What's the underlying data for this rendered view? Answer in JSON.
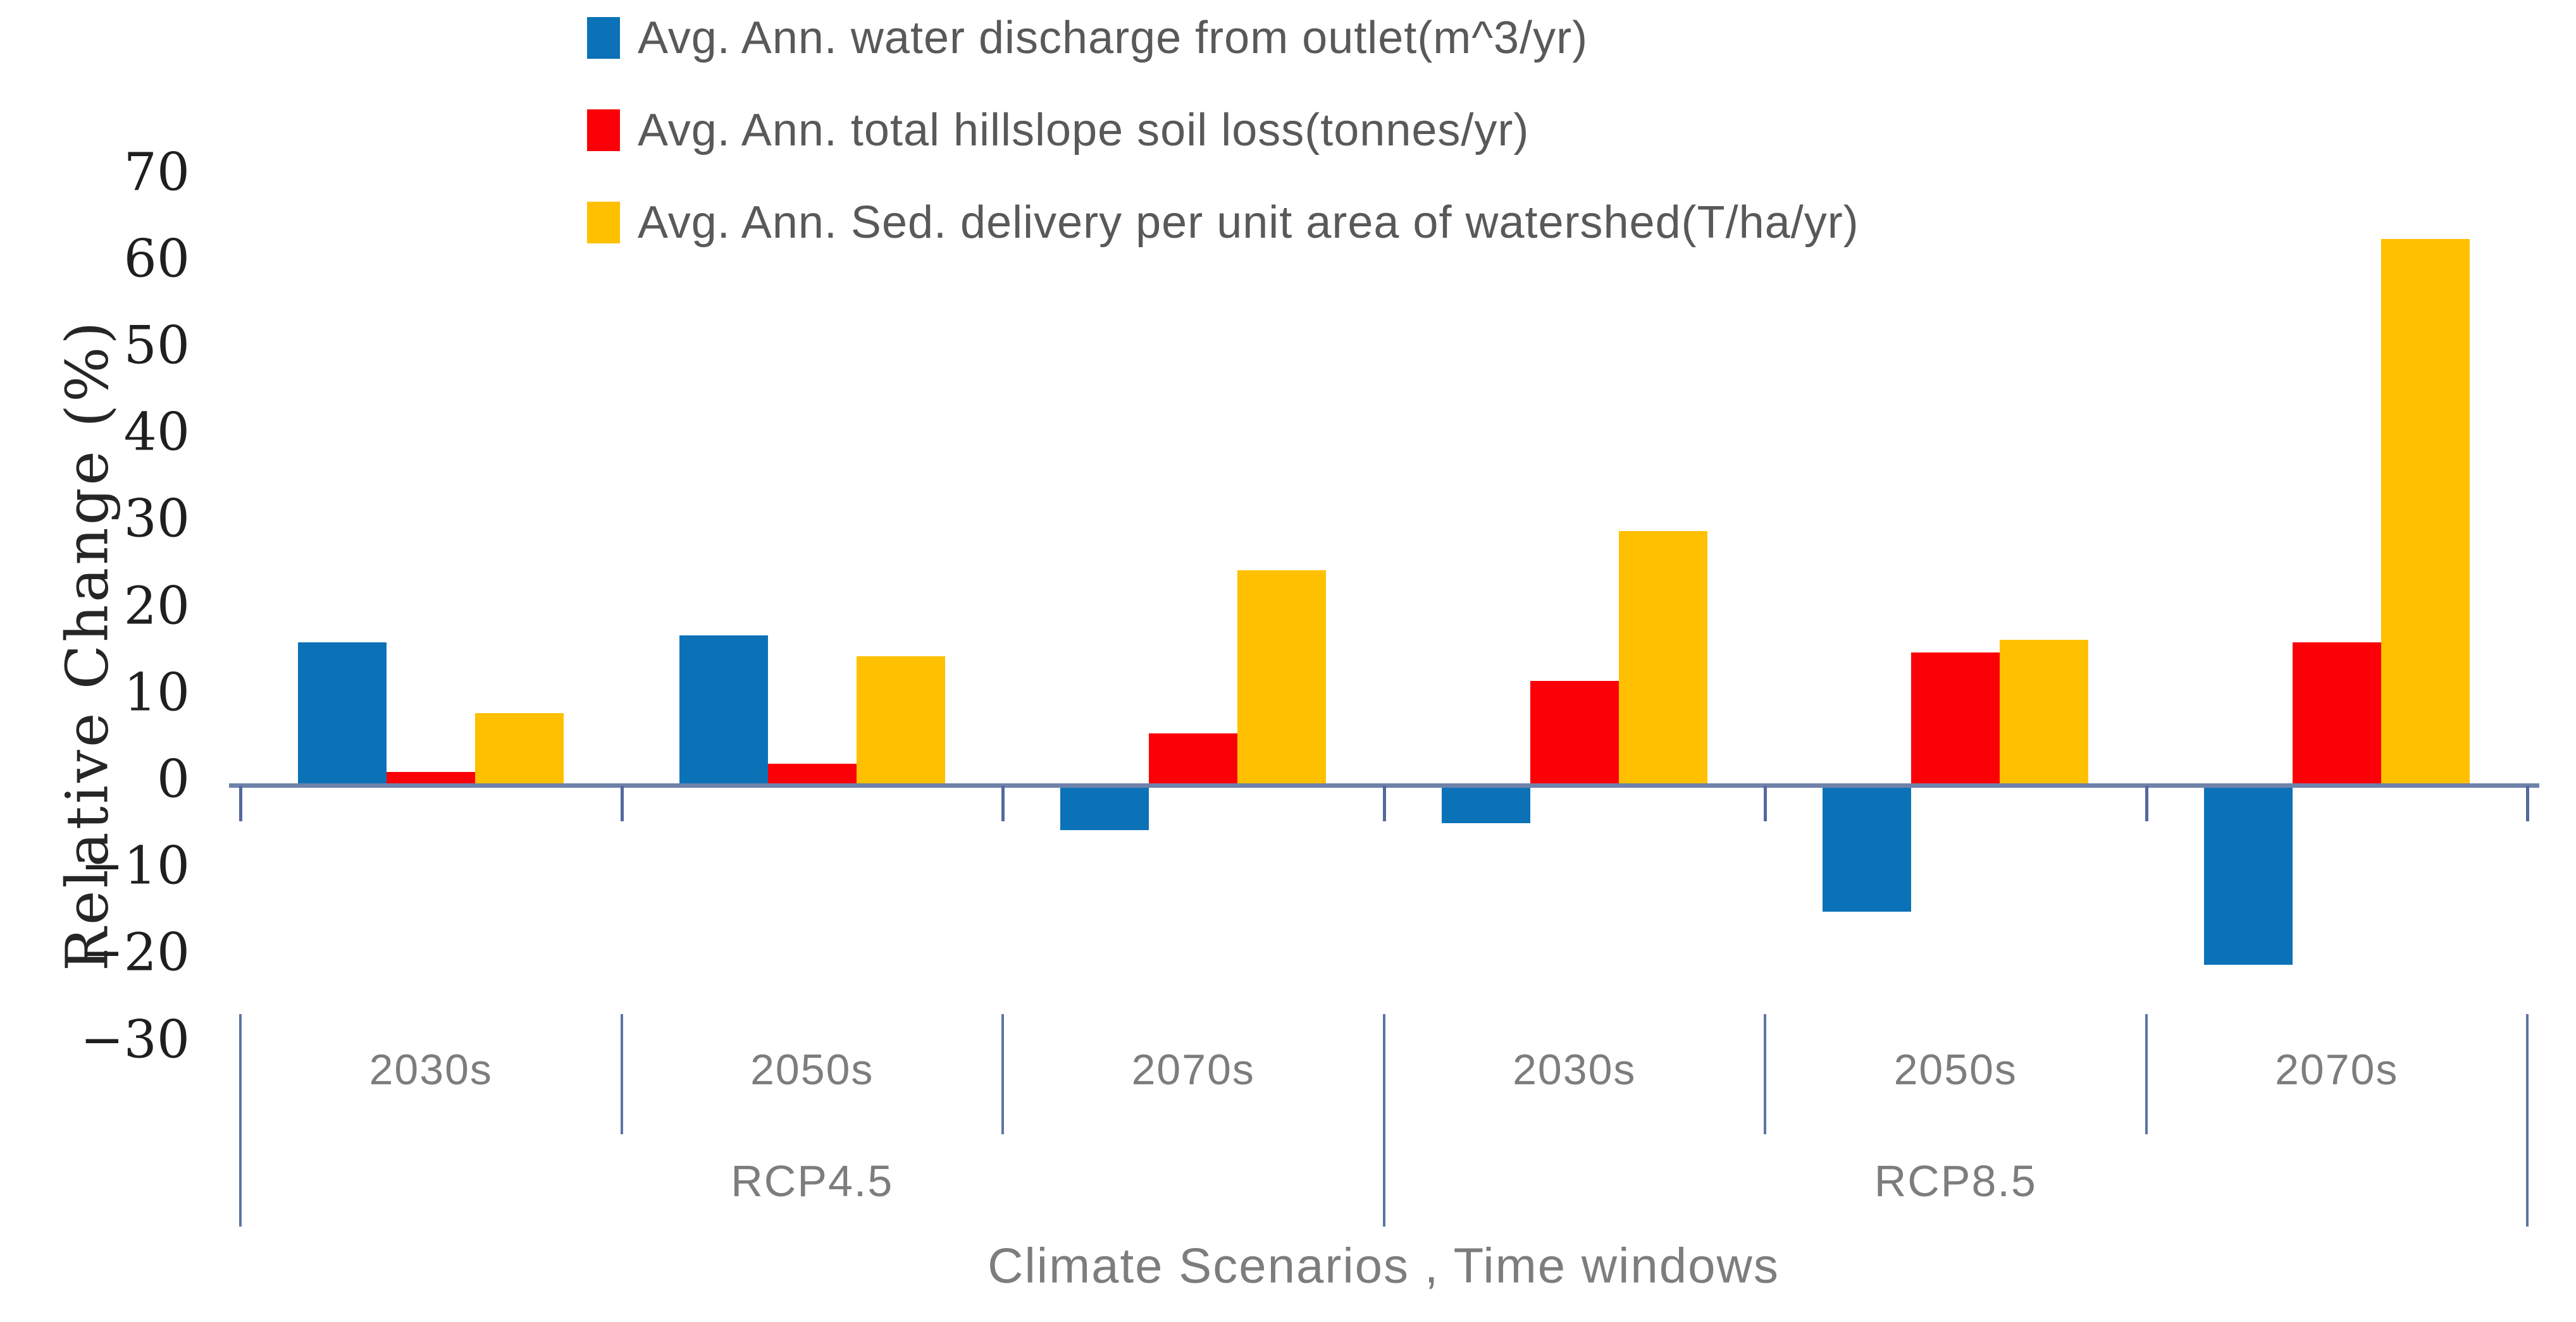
{
  "chart_data": {
    "type": "bar",
    "title": "",
    "xlabel": "Climate Scenarios , Time windows",
    "ylabel": "Relative Change (%)",
    "ylim": [
      -30,
      70
    ],
    "y_ticks": [
      70,
      60,
      50,
      40,
      30,
      20,
      10,
      0,
      -10,
      -20,
      -30
    ],
    "grid": "off",
    "legend_position": "top-center",
    "categories": [
      "2030s",
      "2050s",
      "2070s",
      "2030s",
      "2050s",
      "2070s"
    ],
    "scenario_groups": [
      {
        "label": "RCP4.5",
        "categories": [
          "2030s",
          "2050s",
          "2070s"
        ]
      },
      {
        "label": "RCP8.5",
        "categories": [
          "2030s",
          "2050s",
          "2070s"
        ]
      }
    ],
    "series": [
      {
        "name": "Avg. Ann. water discharge from outlet(m^3/yr)",
        "color": "#0B72B8",
        "values": [
          16.5,
          17.3,
          -5.2,
          -4.4,
          -14.6,
          -20.7
        ]
      },
      {
        "name": "Avg. Ann. total hillslope soil loss(tonnes/yr)",
        "color": "#FB0007",
        "values": [
          1.5,
          2.5,
          6.0,
          12.0,
          15.3,
          16.5
        ]
      },
      {
        "name": "Avg. Ann. Sed. delivery per unit area of watershed(T/ha/yr)",
        "color": "#FFC001",
        "values": [
          8.3,
          14.9,
          24.8,
          29.3,
          16.8,
          63.0
        ]
      }
    ],
    "style": {
      "axis_line_color": "#6e82aa",
      "tick_mark_color": "#54699c",
      "tick_label_color": "#1f1f1f",
      "category_label_color": "#7d7d7d",
      "legend_text_color": "#595959"
    }
  }
}
